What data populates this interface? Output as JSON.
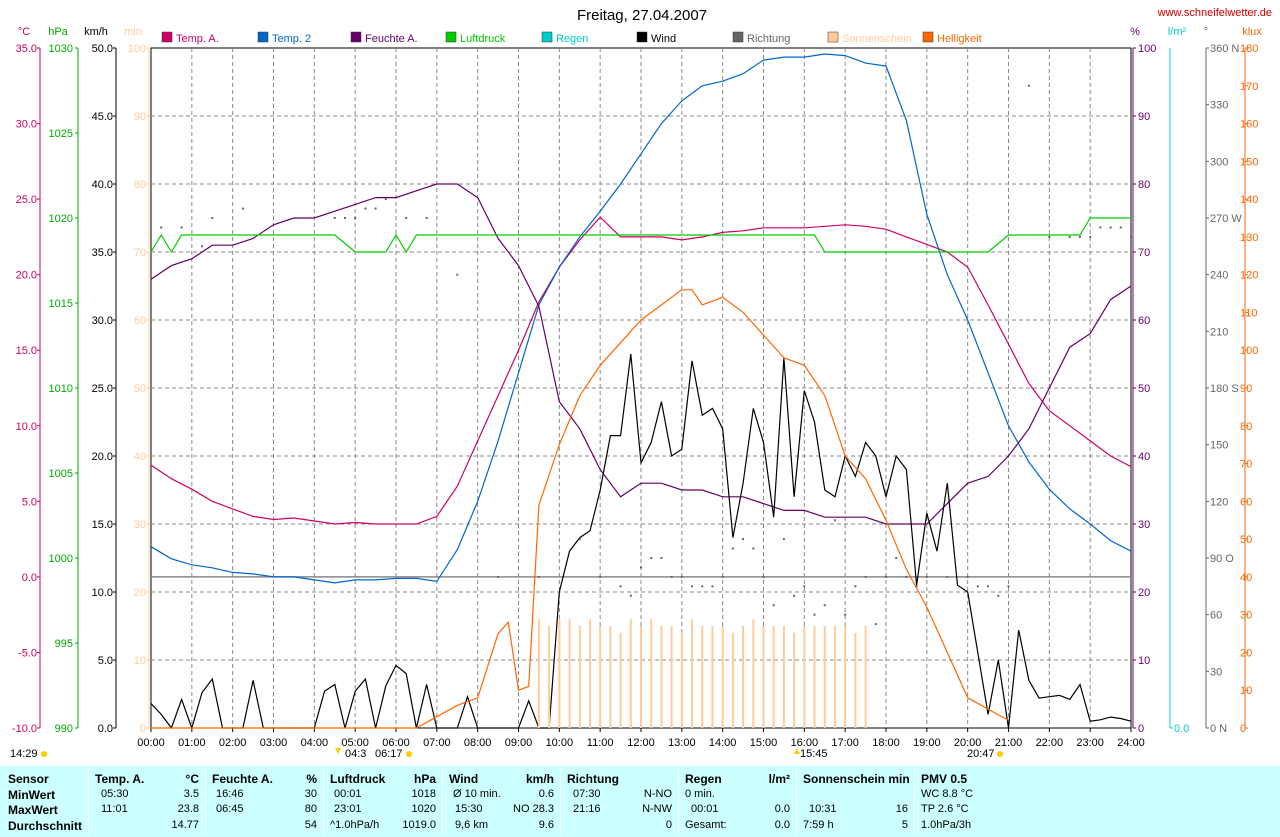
{
  "chart_data": {
    "type": "line",
    "title": "Freitag, 27.04.2007",
    "website": "www.schneifelwetter.de",
    "x_ticks": [
      "00:00",
      "01:00",
      "02:00",
      "03:00",
      "04:00",
      "05:00",
      "06:00",
      "07:00",
      "08:00",
      "09:00",
      "10:00",
      "11:00",
      "12:00",
      "13:00",
      "14:00",
      "15:00",
      "16:00",
      "17:00",
      "18:00",
      "19:00",
      "20:00",
      "21:00",
      "22:00",
      "23:00",
      "24:00"
    ],
    "x_range_hours": [
      0,
      24
    ],
    "grid": true,
    "legend_position": "top",
    "axes": {
      "temp": {
        "unit": "°C",
        "range": [
          -10,
          35
        ],
        "ticks": [
          "35.0",
          "30.0",
          "25.0",
          "20.0",
          "15.0",
          "10.0",
          "5.0",
          "0.0",
          "-5.0",
          "-10.0"
        ],
        "color": "#cc0066"
      },
      "pressure": {
        "unit": "hPa",
        "range": [
          990,
          1030
        ],
        "ticks": [
          "1030",
          "1025",
          "1020",
          "1015",
          "1010",
          "1005",
          "1000",
          "995",
          "990"
        ],
        "color": "#00aa00"
      },
      "wind": {
        "unit": "km/h",
        "range": [
          0,
          50
        ],
        "ticks": [
          "50.0",
          "45.0",
          "40.0",
          "35.0",
          "30.0",
          "25.0",
          "20.0",
          "15.0",
          "10.0",
          "5.0",
          "0.0"
        ],
        "color": "#000000"
      },
      "sunshine": {
        "unit": "min",
        "range": [
          0,
          100
        ],
        "ticks": [
          "100",
          "90",
          "80",
          "70",
          "60",
          "50",
          "40",
          "30",
          "20",
          "10",
          "0"
        ],
        "color": "#ffcc99"
      },
      "humidity": {
        "unit": "%",
        "range": [
          0,
          100
        ],
        "ticks": [
          "100",
          "90",
          "80",
          "70",
          "60",
          "50",
          "40",
          "30",
          "20",
          "10",
          "0"
        ],
        "color": "#660066"
      },
      "rain": {
        "unit": "l/m²",
        "ticks": [
          "0.0"
        ],
        "color": "#00cccc"
      },
      "direction": {
        "unit": "°",
        "ticks": [
          "360 N",
          "330",
          "300",
          "270 W",
          "240",
          "210",
          "180 S",
          "150",
          "120",
          "90 O",
          "60",
          "30",
          "0 N"
        ],
        "color": "#666666"
      },
      "brightness": {
        "unit": "klux",
        "range": [
          0,
          180
        ],
        "ticks": [
          "180",
          "170",
          "160",
          "150",
          "140",
          "130",
          "120",
          "110",
          "100",
          "90",
          "80",
          "70",
          "60",
          "50",
          "40",
          "30",
          "20",
          "10",
          "0"
        ],
        "color": "#ff6600"
      }
    },
    "legend": [
      {
        "name": "Temp. A.",
        "color": "#cc0066"
      },
      {
        "name": "Temp. 2",
        "color": "#0066cc"
      },
      {
        "name": "Feuchte A.",
        "color": "#660066"
      },
      {
        "name": "Luftdruck",
        "color": "#00cc00"
      },
      {
        "name": "Regen",
        "color": "#00cccc"
      },
      {
        "name": "Wind",
        "color": "#000000"
      },
      {
        "name": "Richtung",
        "color": "#666666"
      },
      {
        "name": "Sonnenschein",
        "color": "#ffcc99"
      },
      {
        "name": "Helligkeit",
        "color": "#ff6600"
      }
    ],
    "series": [
      {
        "name": "Temp. A.",
        "axis": "temp",
        "color": "#cc0066",
        "x": [
          0,
          0.5,
          1,
          1.5,
          2,
          2.5,
          3,
          3.5,
          4,
          4.5,
          5,
          5.5,
          6,
          6.5,
          7,
          7.5,
          8,
          8.5,
          9,
          9.5,
          10,
          10.5,
          11,
          11.5,
          12,
          12.5,
          13,
          13.5,
          14,
          14.5,
          15,
          15.5,
          16,
          16.5,
          17,
          17.5,
          18,
          18.5,
          19,
          19.5,
          20,
          20.5,
          21,
          21.5,
          22,
          22.5,
          23,
          23.5,
          24
        ],
        "y": [
          7.4,
          6.5,
          5.8,
          5.0,
          4.5,
          4.0,
          3.8,
          3.9,
          3.7,
          3.5,
          3.6,
          3.5,
          3.5,
          3.5,
          4.0,
          6.0,
          9.0,
          12.0,
          15.0,
          18.2,
          20.5,
          22.3,
          23.8,
          22.5,
          22.5,
          22.5,
          22.3,
          22.5,
          22.8,
          22.9,
          23.1,
          23.1,
          23.1,
          23.2,
          23.3,
          23.2,
          23.0,
          22.5,
          22.0,
          21.5,
          20.5,
          18.0,
          15.4,
          12.8,
          11.0,
          10.0,
          9.0,
          8.0,
          7.3
        ]
      },
      {
        "name": "Temp. 2",
        "axis": "temp",
        "color": "#0066cc",
        "x": [
          0,
          0.5,
          1,
          1.5,
          2,
          2.5,
          3,
          3.5,
          4,
          4.5,
          5,
          5.5,
          6,
          6.5,
          7,
          7.5,
          8,
          8.5,
          9,
          9.5,
          10,
          10.5,
          11,
          11.5,
          12,
          12.5,
          13,
          13.5,
          14,
          14.5,
          15,
          15.5,
          16,
          16.5,
          17,
          17.5,
          18,
          18.5,
          19,
          19.5,
          20,
          20.5,
          21,
          21.5,
          22,
          22.5,
          23,
          23.5,
          24
        ],
        "y": [
          2.0,
          1.2,
          0.8,
          0.6,
          0.3,
          0.2,
          0.0,
          0.0,
          -0.2,
          -0.4,
          -0.2,
          -0.2,
          -0.1,
          -0.1,
          -0.3,
          1.8,
          5.0,
          9.0,
          13.5,
          18.0,
          20.5,
          22.5,
          24.2,
          26.0,
          28.0,
          30.0,
          31.5,
          32.5,
          32.8,
          33.3,
          34.2,
          34.4,
          34.4,
          34.6,
          34.5,
          34.0,
          33.8,
          30.2,
          24.0,
          20.0,
          17.0,
          13.5,
          10.0,
          7.6,
          5.8,
          4.5,
          3.5,
          2.4,
          1.7
        ]
      },
      {
        "name": "Feuchte A.",
        "axis": "humidity",
        "color": "#660066",
        "x": [
          0,
          0.5,
          1,
          1.5,
          2,
          2.5,
          3,
          3.5,
          4,
          4.5,
          5,
          5.5,
          6,
          6.5,
          7,
          7.5,
          8,
          8.5,
          9,
          9.5,
          10,
          10.5,
          11,
          11.5,
          12,
          12.5,
          13,
          13.5,
          14,
          14.5,
          15,
          15.5,
          16,
          16.5,
          17,
          17.5,
          18,
          18.5,
          19,
          19.5,
          20,
          20.5,
          21,
          21.5,
          22,
          22.5,
          23,
          23.5,
          24
        ],
        "y": [
          66,
          68,
          69,
          71,
          71,
          72,
          74,
          75,
          75,
          76,
          77,
          78,
          78,
          79,
          80,
          80,
          78,
          72,
          68,
          62,
          48,
          44,
          38,
          34,
          36,
          36,
          35,
          35,
          34,
          34,
          33,
          32,
          32,
          31,
          31,
          31,
          30,
          30,
          30,
          33,
          36,
          37,
          40,
          44,
          50,
          56,
          58,
          63,
          65
        ]
      },
      {
        "name": "Luftdruck",
        "axis": "pressure",
        "color": "#00cc00",
        "x": [
          0,
          0.25,
          0.5,
          0.75,
          1,
          2,
          3,
          4,
          4.5,
          5,
          5.5,
          5.75,
          6,
          6.25,
          6.5,
          7,
          8,
          9,
          10,
          11,
          12,
          13,
          14,
          15,
          16,
          16.25,
          16.5,
          17,
          18,
          19,
          20,
          20.5,
          21,
          22,
          22.5,
          22.75,
          23,
          23.5,
          24
        ],
        "y": [
          1018,
          1019,
          1018,
          1019,
          1019,
          1019,
          1019,
          1019,
          1019,
          1018,
          1018,
          1018,
          1019,
          1018,
          1019,
          1019,
          1019,
          1019,
          1019,
          1019,
          1019,
          1019,
          1019,
          1019,
          1019,
          1019,
          1018,
          1018,
          1018,
          1018,
          1018,
          1018,
          1019,
          1019,
          1019,
          1019,
          1020,
          1020,
          1020
        ]
      },
      {
        "name": "Wind",
        "axis": "wind",
        "color": "#000000",
        "x": [
          0,
          0.25,
          0.5,
          0.75,
          1,
          1.25,
          1.5,
          1.75,
          2,
          2.25,
          2.5,
          2.75,
          3,
          3.25,
          3.5,
          3.75,
          4,
          4.25,
          4.5,
          4.75,
          5,
          5.25,
          5.5,
          5.75,
          6,
          6.25,
          6.5,
          6.75,
          7,
          7.25,
          7.5,
          7.75,
          8,
          8.25,
          8.5,
          8.75,
          9,
          9.25,
          9.5,
          9.75,
          10,
          10.25,
          10.5,
          10.75,
          11,
          11.25,
          11.5,
          11.75,
          12,
          12.25,
          12.5,
          12.75,
          13,
          13.25,
          13.5,
          13.75,
          14,
          14.25,
          14.5,
          14.75,
          15,
          15.25,
          15.5,
          15.75,
          16,
          16.25,
          16.5,
          16.75,
          17,
          17.25,
          17.5,
          17.75,
          18,
          18.25,
          18.5,
          18.75,
          19,
          19.25,
          19.5,
          19.75,
          20,
          20.25,
          20.5,
          20.75,
          21,
          21.25,
          21.5,
          21.75,
          22,
          22.25,
          22.5,
          22.75,
          23,
          23.25,
          23.5,
          23.75,
          24
        ],
        "y": [
          1.8,
          1.0,
          0,
          2.1,
          0,
          2.6,
          3.6,
          0,
          0,
          0,
          3.5,
          0,
          0,
          0,
          0,
          0,
          0,
          2.7,
          3.2,
          0,
          2.7,
          3.6,
          0,
          3.1,
          4.6,
          4.0,
          0,
          3.2,
          0,
          0,
          0,
          2.3,
          0,
          0,
          0,
          0,
          0,
          2.0,
          0,
          0,
          10.0,
          13.0,
          14.0,
          14.5,
          17.5,
          21.5,
          21.5,
          27.5,
          19.5,
          21.0,
          24.0,
          20.0,
          20.5,
          27.0,
          23.0,
          23.5,
          22.0,
          14.0,
          18.0,
          23.5,
          21.0,
          15.5,
          27.2,
          17.0,
          24.8,
          22.5,
          17.5,
          17.0,
          20.0,
          18.5,
          21.0,
          20.0,
          17.0,
          20.0,
          19.0,
          10.5,
          15.8,
          13.0,
          18.0,
          10.5,
          10.0,
          5.5,
          1.0,
          5.0,
          0,
          7.2,
          3.5,
          2.2,
          2.3,
          2.4,
          2.1,
          3.2,
          0.5,
          0.6,
          0.8,
          0.7,
          0.5
        ]
      },
      {
        "name": "Helligkeit",
        "axis": "brightness",
        "color": "#ff6600",
        "x": [
          0,
          6.5,
          7,
          7.5,
          8,
          8.5,
          8.75,
          9,
          9.25,
          9.5,
          10,
          10.5,
          11,
          11.5,
          12,
          12.5,
          13,
          13.25,
          13.5,
          14,
          14.5,
          15,
          15.5,
          16,
          16.5,
          17,
          17.5,
          18,
          18.5,
          19,
          19.5,
          20,
          20.5,
          21
        ],
        "y": [
          0,
          0,
          3,
          6,
          8,
          25,
          28,
          10,
          11,
          59,
          75,
          88,
          96,
          102,
          108,
          112,
          116,
          116,
          112,
          114,
          110,
          104,
          98,
          96,
          88,
          72,
          66,
          55,
          42,
          32,
          20,
          8,
          5,
          2
        ]
      },
      {
        "name": "Sonnenschein",
        "axis": "sunshine",
        "color": "#ffcc99",
        "type": "bar",
        "x": [
          9.5,
          9.75,
          10,
          10.25,
          10.5,
          10.75,
          11,
          11.25,
          11.5,
          11.75,
          12,
          12.25,
          12.5,
          12.75,
          13,
          13.25,
          13.5,
          13.75,
          14,
          14.25,
          14.5,
          14.75,
          15,
          15.25,
          15.5,
          15.75,
          16,
          16.25,
          16.5,
          16.75,
          17,
          17.25,
          17.5
        ],
        "y": [
          16,
          15,
          16,
          16,
          15,
          16,
          15,
          15,
          14,
          16,
          15,
          16,
          15,
          15,
          14,
          16,
          15,
          15,
          15,
          14,
          15,
          16,
          15,
          15,
          15,
          14,
          15,
          15,
          15,
          15,
          15,
          14,
          15
        ]
      },
      {
        "name": "Richtung",
        "axis": "direction",
        "color": "#666666",
        "type": "scatter",
        "x": [
          0.25,
          0.75,
          1.25,
          1.5,
          2.25,
          4.5,
          4.75,
          5,
          5.25,
          5.5,
          5.75,
          6.25,
          6.75,
          7.5,
          8.5,
          9.5,
          10.5,
          11,
          11.5,
          11.75,
          12,
          12.25,
          12.5,
          12.75,
          13,
          13.25,
          13.5,
          13.75,
          14,
          14.25,
          14.5,
          14.75,
          15,
          15.25,
          15.5,
          15.75,
          16,
          16.25,
          16.5,
          16.75,
          17,
          17.25,
          17.5,
          17.75,
          18,
          18.25,
          18.5,
          18.75,
          19,
          19.5,
          20,
          20.25,
          20.5,
          20.75,
          21,
          21.5,
          22,
          22.5,
          22.75,
          23,
          23.25,
          23.5,
          23.75,
          24
        ],
        "y": [
          265,
          265,
          255,
          270,
          275,
          270,
          270,
          270,
          275,
          275,
          280,
          270,
          270,
          240,
          80,
          80,
          100,
          80,
          75,
          70,
          85,
          90,
          90,
          80,
          80,
          75,
          75,
          75,
          80,
          95,
          100,
          95,
          80,
          65,
          100,
          70,
          75,
          60,
          65,
          110,
          60,
          75,
          80,
          55,
          80,
          90,
          80,
          75,
          80,
          80,
          80,
          75,
          75,
          70,
          75,
          340,
          260,
          260,
          260,
          260,
          265,
          265,
          265,
          260
        ]
      }
    ],
    "horizontal_lines": [
      {
        "axis": "temp",
        "value": 0.0
      }
    ],
    "sun_markers": {
      "sunrise_label": "04:3",
      "sunrise_time": "06:17",
      "noon": "15:45",
      "sunset": "20:47"
    },
    "left_time_label": "14:29"
  },
  "stats": {
    "sensor": {
      "header": "Sensor",
      "rows": [
        "MinWert",
        "MaxWert",
        "Durchschnitt"
      ]
    },
    "temp": {
      "header": "Temp. A.",
      "unit": "°C",
      "min_time": "05:30",
      "min_val": "3.5",
      "max_time": "11:01",
      "max_val": "23.8",
      "avg": "14.77"
    },
    "humidity": {
      "header": "Feuchte A.",
      "unit": "%",
      "min_time": "16:46",
      "min_val": "30",
      "max_time": "06:45",
      "max_val": "80",
      "avg": "54"
    },
    "pressure": {
      "header": "Luftdruck",
      "unit": "hPa",
      "min_time": "00:01",
      "min_val": "1018",
      "max_time": "23:01",
      "max_val": "1020",
      "avg_label": "^1.0hPa/h",
      "avg": "1019.0"
    },
    "wind": {
      "header": "Wind",
      "unit": "km/h",
      "min_label": "Ø 10 min.",
      "min_val": "0.6",
      "max_time": "15:30",
      "max_val": "NO 28.3",
      "avg_label": "9,6 km",
      "avg": "9.6"
    },
    "direction": {
      "header": "Richtung",
      "min_time": "07:30",
      "min_val": "N-NO",
      "max_time": "21:16",
      "max_val": "N-NW",
      "avg": "0"
    },
    "rain": {
      "header": "Regen",
      "unit": "l/m²",
      "min_label": "0 min.",
      "max_time": "00:01",
      "max_val": "0.0",
      "avg_label": "Gesamt:",
      "avg": "0.0"
    },
    "sunshine": {
      "header": "Sonnenschein min",
      "max_time": "10:31",
      "max_val": "16",
      "avg_label": "7:59 h",
      "avg": "5"
    },
    "pmv": {
      "header": "PMV 0.5",
      "wc": "WC 8.8 °C",
      "tp": "TP 2.6 °C",
      "trend": "1.0hPa/3h"
    }
  }
}
